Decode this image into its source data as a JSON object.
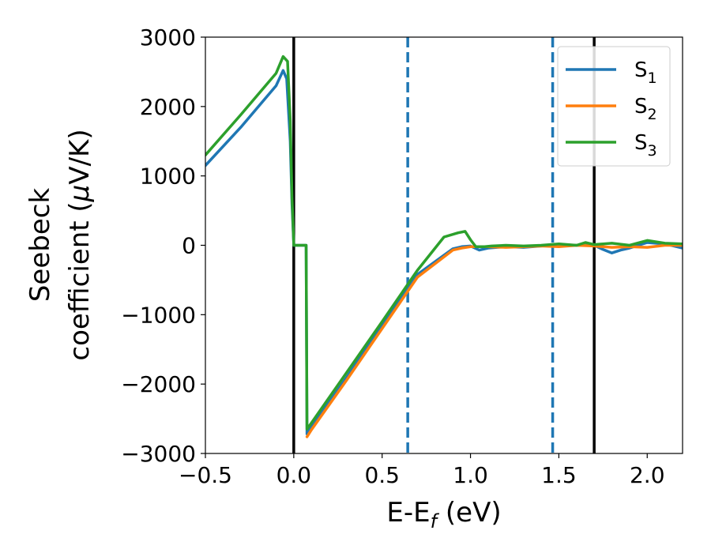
{
  "chart_data": {
    "type": "line",
    "xlabel": "E-E",
    "xlabel_sub": "f",
    "xlabel_unit": " (eV)",
    "ylabel_line1": "Seebeck",
    "ylabel_line2": "coefficient  (",
    "ylabel_mu": "μ",
    "ylabel_unit": "V/K)",
    "xlim": [
      -0.5,
      2.2
    ],
    "ylim": [
      -3000,
      3000
    ],
    "xticks": [
      -0.5,
      0.0,
      0.5,
      1.0,
      1.5,
      2.0
    ],
    "xtick_labels": [
      "−0.5",
      "0.0",
      "0.5",
      "1.0",
      "1.5",
      "2.0"
    ],
    "yticks": [
      -3000,
      -2000,
      -1000,
      0,
      1000,
      2000,
      3000
    ],
    "ytick_labels": [
      "−3000",
      "−2000",
      "−1000",
      "0",
      "1000",
      "2000",
      "3000"
    ],
    "grid": false,
    "legend_position": "top-right",
    "vlines": [
      {
        "x": 0.0,
        "style": "solid",
        "color": "#000000"
      },
      {
        "x": 1.7,
        "style": "solid",
        "color": "#000000"
      },
      {
        "x": 0.645,
        "style": "dashed",
        "color": "#1f77b4"
      },
      {
        "x": 1.465,
        "style": "dashed",
        "color": "#1f77b4"
      }
    ],
    "series": [
      {
        "name": "S",
        "sub": "1",
        "color": "#1f77b4",
        "x": [
          -0.5,
          -0.3,
          -0.1,
          -0.06,
          -0.04,
          -0.02,
          -0.01,
          0.0,
          0.07,
          0.075,
          0.1,
          0.3,
          0.5,
          0.7,
          0.9,
          0.95,
          1.0,
          1.05,
          1.1,
          1.2,
          1.3,
          1.4,
          1.5,
          1.6,
          1.7,
          1.75,
          1.8,
          1.85,
          1.9,
          2.0,
          2.1,
          2.2
        ],
        "y": [
          1150,
          1700,
          2300,
          2520,
          2400,
          1500,
          600,
          0,
          0,
          -2720,
          -2620,
          -1900,
          -1150,
          -420,
          -50,
          -20,
          -10,
          -70,
          -40,
          -20,
          -30,
          -10,
          10,
          0,
          0,
          -60,
          -110,
          -70,
          -40,
          40,
          20,
          -40
        ]
      },
      {
        "name": "S",
        "sub": "2",
        "color": "#ff7f0e",
        "x": [
          0.075,
          0.1,
          0.3,
          0.5,
          0.7,
          0.9,
          0.95,
          1.0,
          1.1,
          1.2,
          1.3,
          1.4,
          1.5,
          1.6,
          1.7,
          1.8,
          1.9,
          2.0,
          2.1,
          2.2
        ],
        "y": [
          -2760,
          -2660,
          -1940,
          -1200,
          -460,
          -70,
          -40,
          -20,
          -20,
          -30,
          -20,
          -10,
          -20,
          0,
          -10,
          -30,
          -20,
          -30,
          0,
          0
        ]
      },
      {
        "name": "S",
        "sub": "3",
        "color": "#2ca02c",
        "x": [
          -0.5,
          -0.3,
          -0.1,
          -0.06,
          -0.035,
          -0.02,
          -0.01,
          0.0,
          0.07,
          0.075,
          0.1,
          0.3,
          0.5,
          0.7,
          0.85,
          0.93,
          0.97,
          1.0,
          1.03,
          1.08,
          1.12,
          1.2,
          1.3,
          1.4,
          1.5,
          1.6,
          1.65,
          1.7,
          1.8,
          1.9,
          2.0,
          2.1,
          2.2
        ],
        "y": [
          1300,
          1880,
          2480,
          2720,
          2650,
          1800,
          700,
          0,
          0,
          -2650,
          -2560,
          -1830,
          -1100,
          -360,
          120,
          180,
          200,
          80,
          -20,
          -20,
          -10,
          0,
          -10,
          0,
          20,
          0,
          40,
          10,
          30,
          0,
          70,
          30,
          20
        ]
      }
    ]
  }
}
